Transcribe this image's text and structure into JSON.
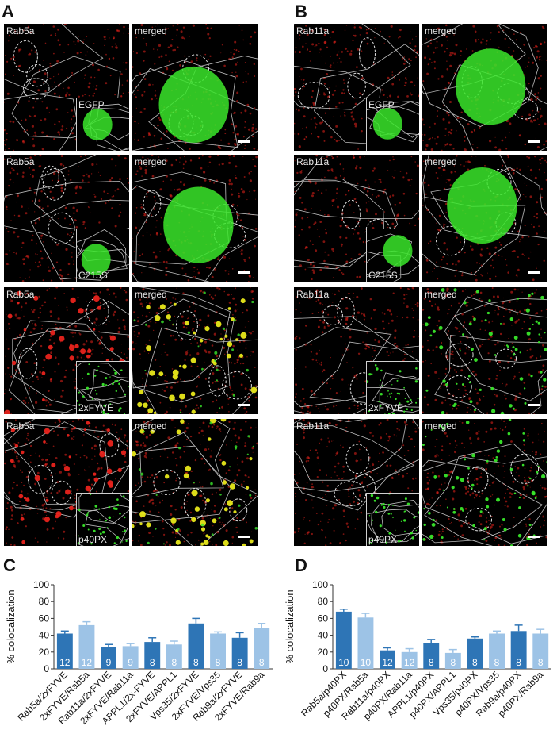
{
  "panel_labels": {
    "A": "A",
    "B": "B",
    "C": "C",
    "D": "D"
  },
  "panel_A": {
    "rows": [
      {
        "marker": "Rab5a",
        "merged": "merged",
        "inset": "EGFP",
        "style": "cyto"
      },
      {
        "marker": "Rab5a",
        "merged": "merged",
        "inset": "C215S",
        "style": "cyto"
      },
      {
        "marker": "Rab5a",
        "merged": "merged",
        "inset": "2xFYVE",
        "style": "yellow"
      },
      {
        "marker": "Rab5a",
        "merged": "merged",
        "inset": "p40PX",
        "style": "yellow"
      }
    ]
  },
  "panel_B": {
    "rows": [
      {
        "marker": "Rab11a",
        "merged": "merged",
        "inset": "EGFP",
        "style": "cyto"
      },
      {
        "marker": "Rab11a",
        "merged": "merged",
        "inset": "C215S",
        "style": "cyto"
      },
      {
        "marker": "Rab11a",
        "merged": "merged",
        "inset": "2xFYVE",
        "style": "greenpunct"
      },
      {
        "marker": "Rab11a",
        "merged": "merged",
        "inset": "p40PX",
        "style": "greenpunct"
      }
    ]
  },
  "colors": {
    "dark_blue": "#2e75b6",
    "light_blue": "#9dc3e6",
    "red": "#e8231c",
    "green": "#39e62a",
    "yellow": "#e8e81a"
  },
  "chart_data": [
    {
      "panel": "C",
      "type": "bar",
      "ylabel": "% colocalization",
      "ylim": [
        0,
        100
      ],
      "yticks": [
        0,
        20,
        40,
        60,
        80,
        100
      ],
      "categories": [
        "Rab5a/2xFYVE",
        "2xFYVE/Rab5a",
        "Rab11a/2xFYVE",
        "2xFYVE/Rab11a",
        "APPL1/2x-FYVE",
        "2xFYVE/APPL1",
        "Vps35/2xFYVE",
        "2xFYVE/Vps35",
        "Rab9a/2xFYVE",
        "2xFYVE/Rab9a"
      ],
      "values": [
        42,
        52,
        26,
        27,
        32,
        29,
        54,
        42,
        37,
        49
      ],
      "errors": [
        3,
        4,
        3,
        3,
        5,
        4,
        6,
        2,
        6,
        5
      ],
      "n_labels": [
        "12",
        "12",
        "9",
        "9",
        "8",
        "8",
        "8",
        "8",
        "8",
        "8"
      ],
      "bar_colors": [
        "#2e75b6",
        "#9dc3e6",
        "#2e75b6",
        "#9dc3e6",
        "#2e75b6",
        "#9dc3e6",
        "#2e75b6",
        "#9dc3e6",
        "#2e75b6",
        "#9dc3e6"
      ]
    },
    {
      "panel": "D",
      "type": "bar",
      "ylabel": "% colocalization",
      "ylim": [
        0,
        100
      ],
      "yticks": [
        0,
        20,
        40,
        60,
        80,
        100
      ],
      "categories": [
        "Rab5a/p40PX",
        "p40PX/Rab5a",
        "Rab11a/p40PX",
        "p40PX/Rab11a",
        "APPL1/p40PX",
        "p40PX/APPL1",
        "Vps35/p40PX",
        "p40PX/Vps35",
        "Rab9a/p40PX",
        "p40PX/Rab9a"
      ],
      "values": [
        68,
        61,
        22,
        20,
        31,
        19,
        36,
        42,
        45,
        42
      ],
      "errors": [
        3,
        5,
        3,
        4,
        4,
        4,
        2,
        3,
        7,
        5
      ],
      "n_labels": [
        "10",
        "10",
        "12",
        "12",
        "8",
        "8",
        "8",
        "8",
        "8",
        "8"
      ],
      "bar_colors": [
        "#2e75b6",
        "#9dc3e6",
        "#2e75b6",
        "#9dc3e6",
        "#2e75b6",
        "#9dc3e6",
        "#2e75b6",
        "#9dc3e6",
        "#2e75b6",
        "#9dc3e6"
      ]
    }
  ]
}
